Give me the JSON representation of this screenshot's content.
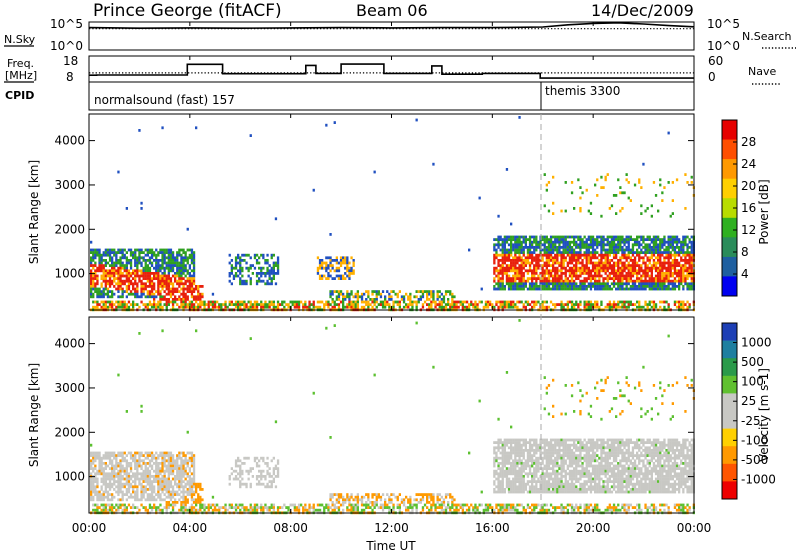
{
  "header": {
    "station": "Prince George (fitACF)",
    "beam": "Beam 06",
    "date": "14/Dec/2009"
  },
  "strip_labels": {
    "nsky": "N.Sky",
    "freq_line1": "Freq.",
    "freq_line2": "[MHz]",
    "cpid": "CPID",
    "nsearch": "N.Search",
    "nave": "Nave"
  },
  "cpid_segments": [
    {
      "label": "normalsound (fast) 157",
      "start_hour": 0
    },
    {
      "label": "themis 3300",
      "start_hour": 18
    }
  ],
  "chart_data": [
    {
      "type": "line",
      "name": "noise",
      "left_axis": {
        "ticks": [
          "10^5",
          "10^0"
        ]
      },
      "right_axis": {
        "ticks": [
          "10^5",
          "10^0"
        ]
      },
      "series": [
        {
          "name": "N.Sky",
          "style": "solid",
          "x": [
            0,
            2,
            4,
            6,
            8,
            10,
            12,
            14,
            16,
            18,
            19,
            20,
            21,
            22,
            23,
            24
          ],
          "y": [
            0.8,
            0.78,
            0.79,
            0.78,
            0.79,
            0.8,
            0.79,
            0.8,
            0.8,
            0.82,
            0.9,
            0.95,
            0.97,
            0.93,
            0.87,
            0.83
          ]
        },
        {
          "name": "N.Search",
          "style": "dotted",
          "x": [
            0,
            24
          ],
          "y": [
            0.76,
            0.76
          ]
        }
      ]
    },
    {
      "type": "line",
      "name": "frequency-nave",
      "left_axis": {
        "ticks": [
          "18",
          "8"
        ],
        "range": [
          8,
          18
        ]
      },
      "right_axis": {
        "ticks": [
          "60",
          "0"
        ],
        "range": [
          0,
          60
        ]
      },
      "series": [
        {
          "name": "Freq.",
          "style": "solid",
          "x": [
            0,
            0.3,
            0.3,
            3.9,
            3.9,
            5.3,
            5.3,
            8.6,
            8.6,
            9.0,
            9.0,
            10.0,
            10.0,
            11.7,
            11.7,
            13.6,
            13.6,
            14.0,
            14.0,
            15.6,
            15.6,
            17.9,
            17.9,
            24
          ],
          "y": [
            10.6,
            10.6,
            10.7,
            10.7,
            14.8,
            14.8,
            11.2,
            11.2,
            14.4,
            14.4,
            11.3,
            11.3,
            14.9,
            14.9,
            11.3,
            11.3,
            14.2,
            14.2,
            11.0,
            11.0,
            11.3,
            11.3,
            9.5,
            9.5
          ]
        },
        {
          "name": "Nave",
          "style": "dotted",
          "x": [
            0,
            18,
            24
          ],
          "y": [
            21,
            21,
            21
          ]
        }
      ]
    },
    {
      "type": "heatmap",
      "name": "power",
      "xlim": [
        0,
        24
      ],
      "ylim": [
        180,
        4600
      ],
      "ylabel": "Slant Range [km]",
      "yticks": [
        1000,
        2000,
        3000,
        4000
      ],
      "colorbar_label": "Power [dB]",
      "colorbar_ticks": [
        "28",
        "24",
        "20",
        "16",
        "12",
        "8",
        "4"
      ],
      "colorbar_colors": [
        "#e60000",
        "#ff4f00",
        "#ff9900",
        "#ffcf00",
        "#b8dc00",
        "#2fb020",
        "#2a8c5a",
        "#1e5fa0",
        "#0000f0"
      ]
    },
    {
      "type": "heatmap",
      "name": "velocity",
      "xlim": [
        0,
        24
      ],
      "ylim": [
        180,
        4600
      ],
      "ylabel": "Slant Range [km]",
      "yticks": [
        1000,
        2000,
        3000,
        4000
      ],
      "xlabel": "Time UT",
      "xticks": [
        "00:00",
        "04:00",
        "08:00",
        "12:00",
        "16:00",
        "20:00",
        "00:00"
      ],
      "colorbar_label": "Velocity [m s-1]",
      "colorbar_ticks": [
        "1000",
        "500",
        "100",
        "25",
        "-25",
        "-100",
        "-500",
        "-1000"
      ],
      "colorbar_colors": [
        "#1d3fb5",
        "#1e7fa0",
        "#2a9a4a",
        "#60c030",
        "#c8c8c4",
        "#c8c8c4",
        "#ffd000",
        "#ff9900",
        "#ff5500",
        "#ee0000"
      ]
    }
  ],
  "colors": {
    "power_strong": "#e8200c",
    "power_mid": "#ffb000",
    "power_weak": "#2fa020",
    "power_faint": "#2050c0",
    "vel_ground": "#c8c8c4",
    "vel_pos": "#5cc030",
    "vel_neg": "#ff9a00"
  }
}
